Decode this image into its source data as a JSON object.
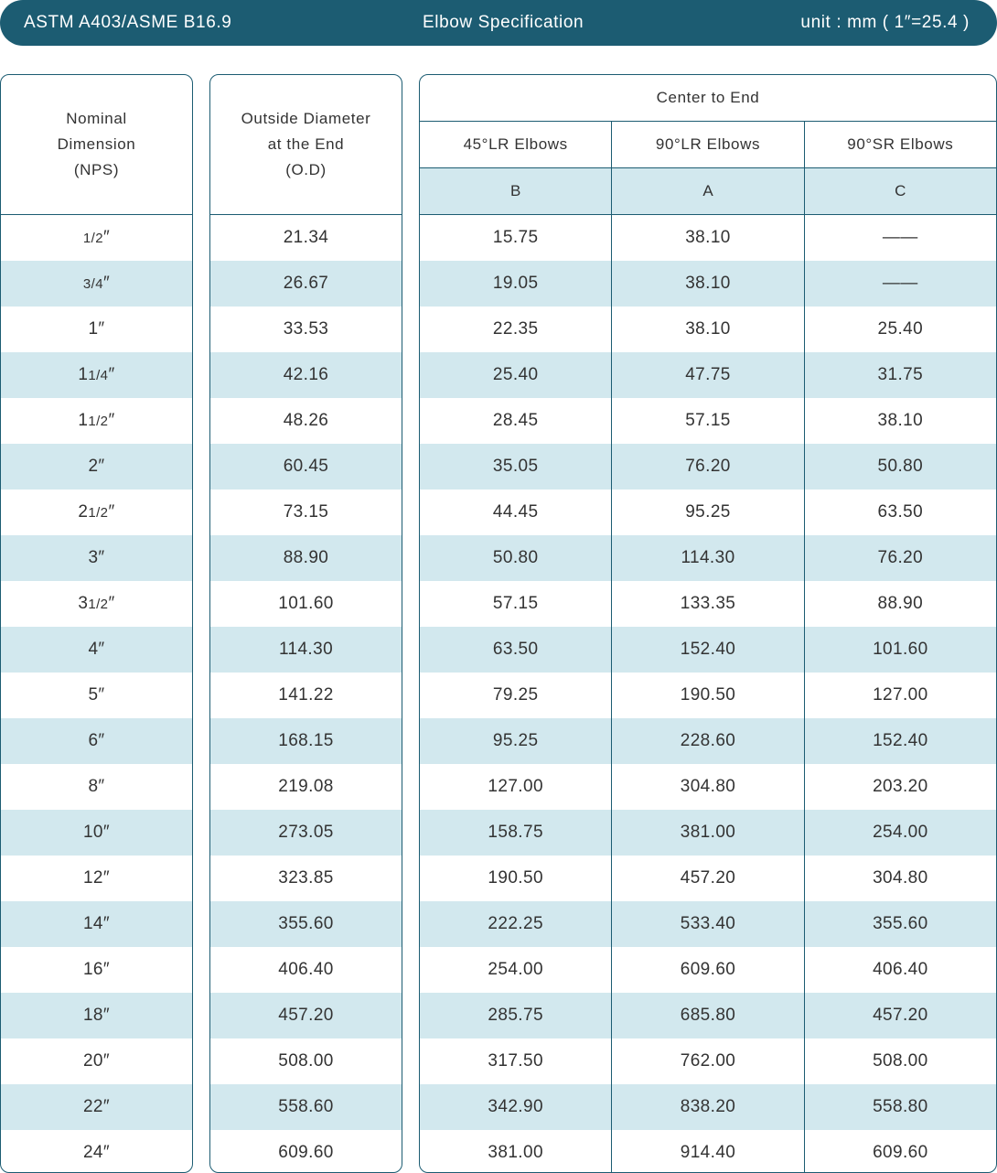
{
  "banner": {
    "standard": "ASTM A403/ASME B16.9",
    "title": "Elbow Specification",
    "unit": "unit : mm ( 1″=25.4 )"
  },
  "headers": {
    "nominal": [
      "Nominal",
      "Dimension",
      "(NPS)"
    ],
    "od": [
      "Outside Diameter",
      "at the End",
      "(O.D)"
    ],
    "center_to_end": "Center to End",
    "sub_columns": [
      "45°LR Elbows",
      "90°LR Elbows",
      "90°SR Elbows"
    ],
    "letters": [
      "B",
      "A",
      "C"
    ]
  },
  "rows": [
    {
      "nps": "1/2″",
      "od": "21.34",
      "b": "15.75",
      "a": "38.10",
      "c": "——"
    },
    {
      "nps": "3/4″",
      "od": "26.67",
      "b": "19.05",
      "a": "38.10",
      "c": "——"
    },
    {
      "nps": "1″",
      "od": "33.53",
      "b": "22.35",
      "a": "38.10",
      "c": "25.40"
    },
    {
      "nps": "1 1/4″",
      "od": "42.16",
      "b": "25.40",
      "a": "47.75",
      "c": "31.75"
    },
    {
      "nps": "1 1/2″",
      "od": "48.26",
      "b": "28.45",
      "a": "57.15",
      "c": "38.10"
    },
    {
      "nps": "2″",
      "od": "60.45",
      "b": "35.05",
      "a": "76.20",
      "c": "50.80"
    },
    {
      "nps": "2 1/2″",
      "od": "73.15",
      "b": "44.45",
      "a": "95.25",
      "c": "63.50"
    },
    {
      "nps": "3″",
      "od": "88.90",
      "b": "50.80",
      "a": "114.30",
      "c": "76.20"
    },
    {
      "nps": "3 1/2″",
      "od": "101.60",
      "b": "57.15",
      "a": "133.35",
      "c": "88.90"
    },
    {
      "nps": "4″",
      "od": "114.30",
      "b": "63.50",
      "a": "152.40",
      "c": "101.60"
    },
    {
      "nps": "5″",
      "od": "141.22",
      "b": "79.25",
      "a": "190.50",
      "c": "127.00"
    },
    {
      "nps": "6″",
      "od": "168.15",
      "b": "95.25",
      "a": "228.60",
      "c": "152.40"
    },
    {
      "nps": "8″",
      "od": "219.08",
      "b": "127.00",
      "a": "304.80",
      "c": "203.20"
    },
    {
      "nps": "10″",
      "od": "273.05",
      "b": "158.75",
      "a": "381.00",
      "c": "254.00"
    },
    {
      "nps": "12″",
      "od": "323.85",
      "b": "190.50",
      "a": "457.20",
      "c": "304.80"
    },
    {
      "nps": "14″",
      "od": "355.60",
      "b": "222.25",
      "a": "533.40",
      "c": "355.60"
    },
    {
      "nps": "16″",
      "od": "406.40",
      "b": "254.00",
      "a": "609.60",
      "c": "406.40"
    },
    {
      "nps": "18″",
      "od": "457.20",
      "b": "285.75",
      "a": "685.80",
      "c": "457.20"
    },
    {
      "nps": "20″",
      "od": "508.00",
      "b": "317.50",
      "a": "762.00",
      "c": "508.00"
    },
    {
      "nps": "22″",
      "od": "558.60",
      "b": "342.90",
      "a": "838.20",
      "c": "558.80"
    },
    {
      "nps": "24″",
      "od": "609.60",
      "b": "381.00",
      "a": "914.40",
      "c": "609.60"
    }
  ],
  "colors": {
    "banner": "#1c5c72",
    "stripe": "#d2e8ee",
    "border": "#1c5c72",
    "text": "#333333"
  }
}
